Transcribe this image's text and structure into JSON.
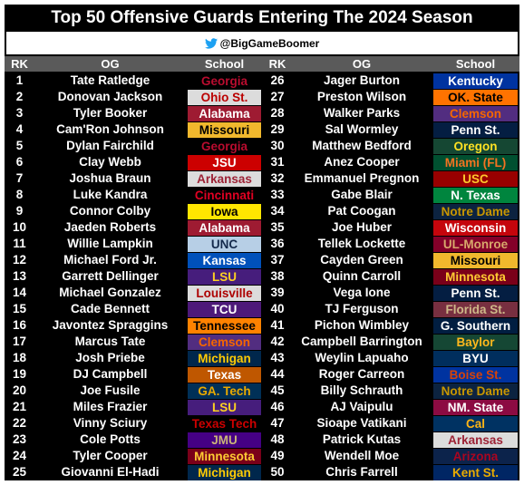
{
  "header": {
    "title": "Top 50 Offensive Guards Entering The 2024 Season",
    "handle": "@BigGameBoomer"
  },
  "table": {
    "columns": [
      "RK",
      "OG",
      "School",
      "RK",
      "OG",
      "School"
    ],
    "rows": [
      [
        1,
        "Tate Ratledge",
        "Georgia",
        26,
        "Jager Burton",
        "Kentucky"
      ],
      [
        2,
        "Donovan Jackson",
        "Ohio St.",
        27,
        "Preston Wilson",
        "OK. State"
      ],
      [
        3,
        "Tyler Booker",
        "Alabama",
        28,
        "Walker Parks",
        "Clemson"
      ],
      [
        4,
        "Cam'Ron Johnson",
        "Missouri",
        29,
        "Sal Wormley",
        "Penn St."
      ],
      [
        5,
        "Dylan Fairchild",
        "Georgia",
        30,
        "Matthew Bedford",
        "Oregon"
      ],
      [
        6,
        "Clay Webb",
        "JSU",
        31,
        "Anez Cooper",
        "Miami (FL)"
      ],
      [
        7,
        "Joshua Braun",
        "Arkansas",
        32,
        "Emmanuel Pregnon",
        "USC"
      ],
      [
        8,
        "Luke Kandra",
        "Cincinnati",
        33,
        "Gabe Blair",
        "N. Texas"
      ],
      [
        9,
        "Connor Colby",
        "Iowa",
        34,
        "Pat Coogan",
        "Notre Dame"
      ],
      [
        10,
        "Jaeden Roberts",
        "Alabama",
        35,
        "Joe Huber",
        "Wisconsin"
      ],
      [
        11,
        "Willie Lampkin",
        "UNC",
        36,
        "Tellek Lockette",
        "UL-Monroe"
      ],
      [
        12,
        "Michael Ford Jr.",
        "Kansas",
        37,
        "Cayden Green",
        "Missouri"
      ],
      [
        13,
        "Garrett Dellinger",
        "LSU",
        38,
        "Quinn Carroll",
        "Minnesota"
      ],
      [
        14,
        "Michael Gonzalez",
        "Louisville",
        39,
        "Vega Ione",
        "Penn St."
      ],
      [
        15,
        "Cade Bennett",
        "TCU",
        40,
        "TJ Ferguson",
        "Florida St."
      ],
      [
        16,
        "Javontez Spraggins",
        "Tennessee",
        41,
        "Pichon Wimbley",
        "G. Southern"
      ],
      [
        17,
        "Marcus Tate",
        "Clemson",
        42,
        "Campbell Barrington",
        "Baylor"
      ],
      [
        18,
        "Josh Priebe",
        "Michigan",
        43,
        "Weylin Lapuaho",
        "BYU"
      ],
      [
        19,
        "DJ Campbell",
        "Texas",
        44,
        "Roger Carreon",
        "Boise St."
      ],
      [
        20,
        "Joe Fusile",
        "GA. Tech",
        45,
        "Billy Schrauth",
        "Notre Dame"
      ],
      [
        21,
        "Miles Frazier",
        "LSU",
        46,
        "AJ Vaipulu",
        "NM. State"
      ],
      [
        22,
        "Vinny Sciury",
        "Texas Tech",
        47,
        "Sioape Vatikani",
        "Cal"
      ],
      [
        23,
        "Cole Potts",
        "JMU",
        48,
        "Patrick Kutas",
        "Arkansas"
      ],
      [
        24,
        "Tyler Cooper",
        "Minnesota",
        49,
        "Wendell Moe",
        "Arizona"
      ],
      [
        25,
        "Giovanni El-Hadi",
        "Michigan",
        50,
        "Chris Farrell",
        "Kent St."
      ]
    ]
  }
}
